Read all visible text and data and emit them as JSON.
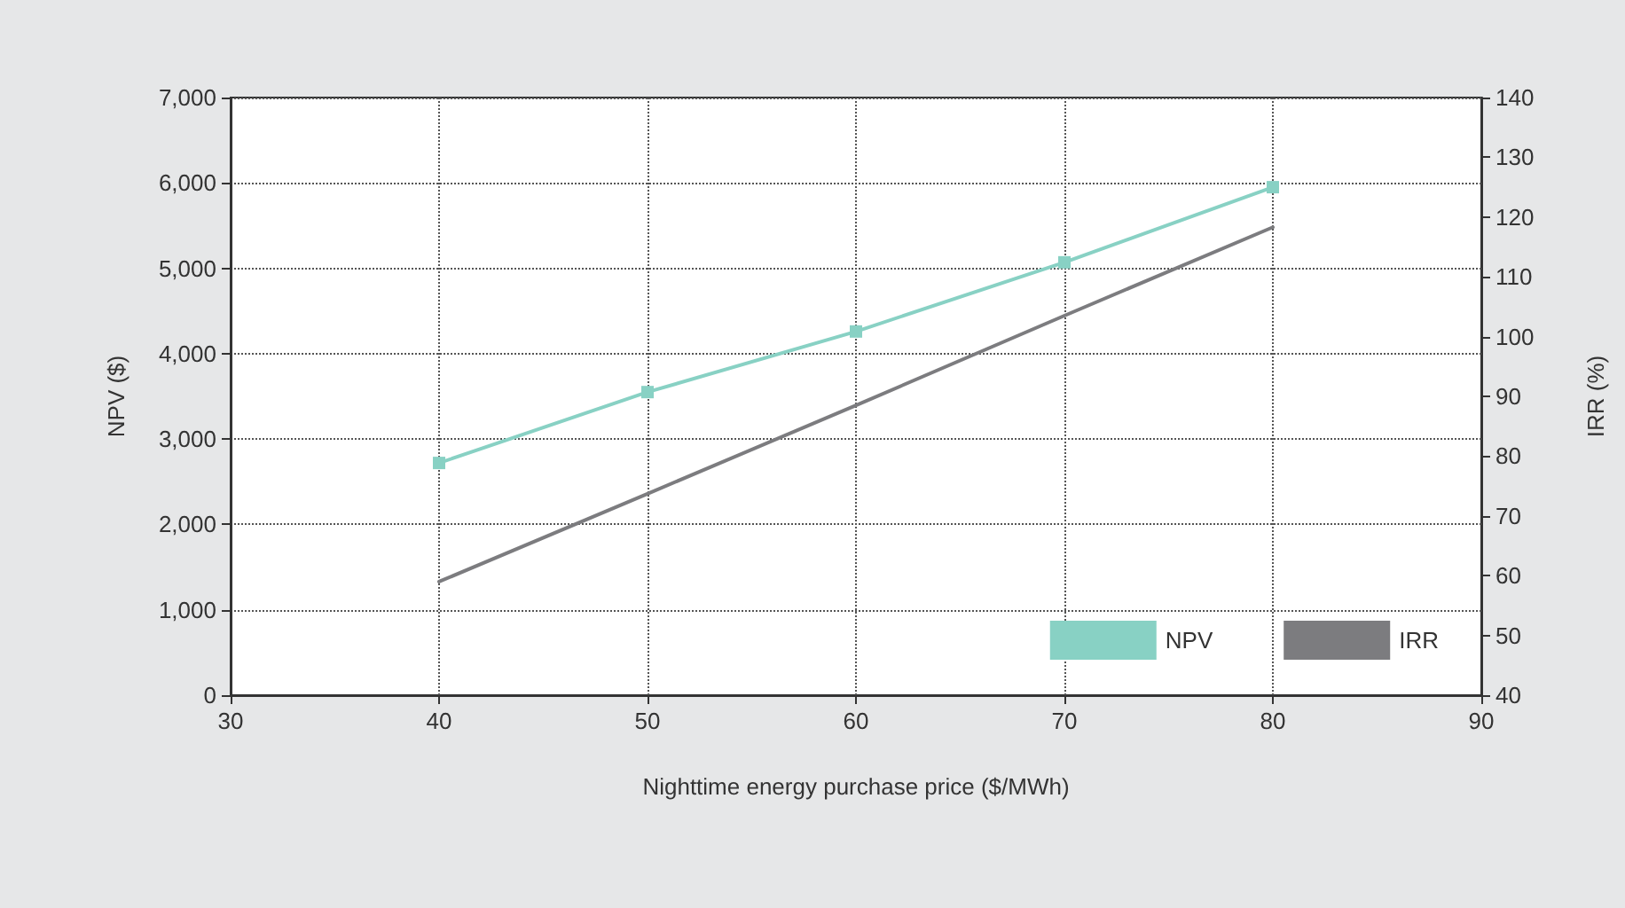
{
  "chart_data": {
    "type": "line",
    "xlabel": "Nighttime energy purchase price ($/MWh)",
    "ylabel": "NPV ($)",
    "y2label": "IRR (%)",
    "x": [
      40,
      50,
      60,
      70,
      80
    ],
    "series": [
      {
        "name": "NPV",
        "color": "#88d1c4",
        "values": [
          2720,
          3550,
          4260,
          5070,
          5950
        ],
        "marker": "square"
      },
      {
        "name": "IRR",
        "color": "#7c7c7f",
        "values": [
          59,
          73.7,
          88.5,
          103.5,
          118.3
        ],
        "axis": "y2",
        "marker": "none"
      }
    ],
    "xlim": [
      30,
      90
    ],
    "xticks": [
      30,
      40,
      50,
      60,
      70,
      80,
      90
    ],
    "ylim": [
      0,
      7000
    ],
    "yticks": [
      0,
      {
        "value": 1000,
        "label": "1,000"
      },
      {
        "value": 2000,
        "label": "2,000"
      },
      {
        "value": 3000,
        "label": "3,000"
      },
      {
        "value": 4000,
        "label": "4,000"
      },
      {
        "value": 5000,
        "label": "5,000"
      },
      {
        "value": 6000,
        "label": "6,000"
      },
      {
        "value": 7000,
        "label": "7,000"
      }
    ],
    "y2lim": [
      40,
      140
    ],
    "y2ticks": [
      40,
      50,
      60,
      70,
      80,
      90,
      100,
      110,
      120,
      130,
      140
    ],
    "grid": true,
    "legend": "bottom right",
    "line_style": "solid"
  }
}
